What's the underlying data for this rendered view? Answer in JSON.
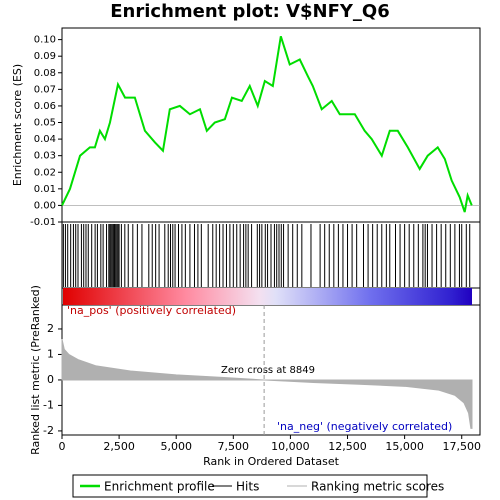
{
  "chart_data": {
    "type": "line",
    "title": "Enrichment plot: V$NFY_Q6",
    "y_label": "Enrichment score (ES)",
    "y2_label": "Ranked list metric (PreRanked)",
    "x_label": "Rank in Ordered Dataset",
    "xlim": [
      0,
      18300
    ],
    "xticks": [
      0,
      {
        "value": 2500,
        "label": "2,500"
      },
      {
        "value": 5000,
        "label": "5,000"
      },
      {
        "value": 7500,
        "label": "7,500"
      },
      {
        "value": 10000,
        "label": "10,000"
      },
      {
        "value": 12500,
        "label": "12,500"
      },
      {
        "value": 15000,
        "label": "15,000"
      },
      {
        "value": 17500,
        "label": "17,500"
      }
    ],
    "ylim": [
      -0.01,
      0.107
    ],
    "yticks": [
      -0.01,
      {
        "value": 0,
        "label": "0.00"
      },
      0.01,
      0.02,
      0.03,
      0.04,
      0.05,
      0.06,
      0.07,
      0.08,
      0.09,
      {
        "value": 0.1,
        "label": "0.10"
      }
    ],
    "y2lim": [
      -2.16,
      2.94
    ],
    "y2ticks": [
      2,
      1,
      0,
      -1,
      -2
    ],
    "series": [
      {
        "name": "Enrichment profile",
        "color": "#00dd00",
        "x": [
          0,
          350,
          790,
          1220,
          1440,
          1660,
          1880,
          2100,
          2450,
          2760,
          3190,
          3630,
          4070,
          4420,
          4720,
          5160,
          5600,
          6040,
          6340,
          6690,
          7130,
          7440,
          7870,
          8220,
          8570,
          8880,
          9230,
          9580,
          9970,
          10410,
          10760,
          10980,
          11370,
          11810,
          12160,
          12820,
          13250,
          13560,
          14000,
          14350,
          14700,
          15140,
          15660,
          16010,
          16450,
          16760,
          17060,
          17410,
          17630,
          17760,
          17940
        ],
        "values": [
          0,
          0.01,
          0.03,
          0.035,
          0.035,
          0.045,
          0.04,
          0.05,
          0.073,
          0.065,
          0.065,
          0.045,
          0.038,
          0.033,
          0.058,
          0.06,
          0.055,
          0.058,
          0.045,
          0.05,
          0.052,
          0.065,
          0.063,
          0.072,
          0.06,
          0.075,
          0.072,
          0.102,
          0.085,
          0.088,
          0.078,
          0.072,
          0.058,
          0.063,
          0.055,
          0.055,
          0.045,
          0.04,
          0.03,
          0.045,
          0.045,
          0.035,
          0.022,
          0.03,
          0.035,
          0.028,
          0.015,
          0.005,
          -0.004,
          0.006,
          0
        ]
      },
      {
        "name": "Hits",
        "color": "#000000",
        "x": [
          60,
          150,
          250,
          380,
          500,
          600,
          700,
          850,
          950,
          1050,
          1150,
          1300,
          1450,
          1550,
          1700,
          1800,
          1950,
          2050,
          2100,
          2150,
          2200,
          2250,
          2300,
          2350,
          2400,
          2450,
          2500,
          2600,
          2750,
          2900,
          3100,
          3300,
          3500,
          3800,
          3950,
          4100,
          4250,
          4500,
          4650,
          4750,
          4850,
          4950,
          5100,
          5250,
          5400,
          5600,
          5800,
          5950,
          6100,
          6400,
          6600,
          6750,
          6900,
          7050,
          7200,
          7350,
          7500,
          7650,
          7800,
          7950,
          8050,
          8150,
          8300,
          8550,
          8650,
          8750,
          8900,
          9000,
          9150,
          9300,
          9400,
          9500,
          9600,
          9700,
          9900,
          10100,
          10300,
          10500,
          10900,
          11300,
          11500,
          11700,
          11900,
          12100,
          12300,
          12500,
          12700,
          12900,
          13200,
          13400,
          13600,
          13800,
          14000,
          14200,
          14350,
          14600,
          14800,
          15000,
          15200,
          15400,
          15600,
          15800,
          15900,
          16000,
          16200,
          16400,
          16600,
          16800,
          17000,
          17200,
          17400,
          17500,
          17700,
          17850
        ]
      },
      {
        "name": "Ranking metric scores",
        "color": "#b0b0b0",
        "axis": "y2",
        "x": [
          0,
          100,
          300,
          700,
          1500,
          3000,
          5000,
          7000,
          8849,
          11000,
          13000,
          15000,
          16500,
          17200,
          17600,
          17800,
          17900,
          17950
        ],
        "values": [
          1.6,
          1.2,
          1.0,
          0.8,
          0.55,
          0.35,
          0.2,
          0.1,
          0,
          -0.1,
          -0.17,
          -0.25,
          -0.4,
          -0.6,
          -0.9,
          -1.3,
          -1.9,
          -1.9
        ]
      }
    ],
    "zero_cross": 8849,
    "zero_cross_label": "Zero cross at 8849",
    "pos_label": "'na_pos' (positively correlated)",
    "neg_label": "'na_neg' (negatively correlated)"
  }
}
